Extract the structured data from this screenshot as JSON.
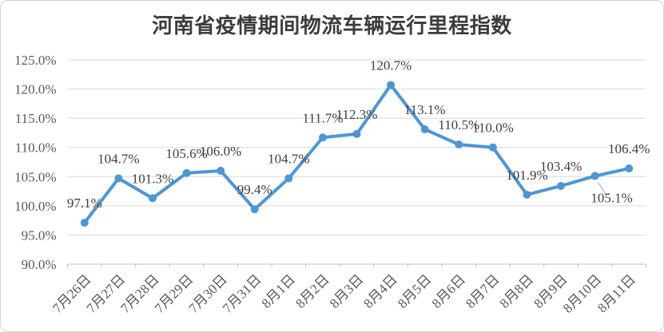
{
  "chart_data": {
    "type": "line",
    "title": "河南省疫情期间物流车辆运行里程指数",
    "categories": [
      "7月26日",
      "7月27日",
      "7月28日",
      "7月29日",
      "7月30日",
      "7月31日",
      "8月1日",
      "8月2日",
      "8月3日",
      "8月4日",
      "8月5日",
      "8月6日",
      "8月7日",
      "8月8日",
      "8月9日",
      "8月10日",
      "8月11日"
    ],
    "values": [
      97.1,
      104.7,
      101.3,
      105.6,
      106.0,
      99.4,
      104.7,
      111.7,
      112.3,
      120.7,
      113.1,
      110.5,
      110.0,
      101.9,
      103.4,
      105.1,
      106.4
    ],
    "data_labels": [
      "97.1%",
      "104.7%",
      "101.3%",
      "105.6%",
      "106.0%",
      "99.4%",
      "104.7%",
      "111.7%",
      "112.3%",
      "120.7%",
      "113.1%",
      "110.5%",
      "110.0%",
      "101.9%",
      "103.4%",
      "105.1%",
      "106.4%"
    ],
    "xlabel": "",
    "ylabel": "",
    "ylim": [
      90,
      125
    ],
    "ytick_step": 5,
    "ytick_labels": [
      "90.0%",
      "95.0%",
      "100.0%",
      "105.0%",
      "110.0%",
      "115.0%",
      "120.0%",
      "125.0%"
    ],
    "grid": true,
    "legend_position": "none",
    "line_color": "#4e96d3",
    "marker": "circle",
    "gridline_color": "#d9d9d9",
    "axis_color": "#bfbfbf",
    "axis_label_color": "#595959",
    "data_label_color": "#3f3f3f",
    "label_below_index": 15,
    "leader_line_color": "#a6a6a6"
  }
}
